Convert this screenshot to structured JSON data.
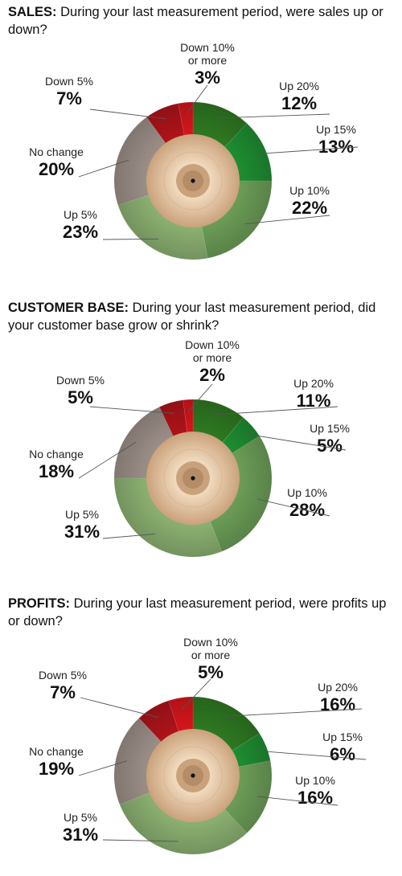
{
  "colors": {
    "down10": "#d8161c",
    "down5": "#b0141a",
    "nochange": "#9d9089",
    "up5": "#8db373",
    "up10": "#6d9f58",
    "up15": "#1e8f32",
    "up20": "#2f7a22",
    "cymbal_light": "#f2dcc0",
    "cymbal_dark": "#caa27c"
  },
  "chart_data": [
    {
      "type": "pie",
      "title_lead": "SALES:",
      "title_rest": "During your last measurement period, were sales up or down?",
      "categories": [
        "Up 20%",
        "Up 15%",
        "Up 10%",
        "Up 5%",
        "No change",
        "Down 5%",
        "Down 10% or more"
      ],
      "values": [
        12,
        13,
        22,
        23,
        20,
        7,
        3
      ],
      "labels": [
        {
          "name": [
            "Up 20%"
          ],
          "pct": "12%"
        },
        {
          "name": [
            "Up 15%"
          ],
          "pct": "13%"
        },
        {
          "name": [
            "Up 10%"
          ],
          "pct": "22%"
        },
        {
          "name": [
            "Up 5%"
          ],
          "pct": "23%"
        },
        {
          "name": [
            "No change"
          ],
          "pct": "20%"
        },
        {
          "name": [
            "Down 5%"
          ],
          "pct": "7%"
        },
        {
          "name": [
            "Down 10%",
            "or more"
          ],
          "pct": "3%"
        }
      ]
    },
    {
      "type": "pie",
      "title_lead": "CUSTOMER BASE:",
      "title_rest": "During your last measurement period, did your customer base grow or shrink?",
      "categories": [
        "Up 20%",
        "Up 15%",
        "Up 10%",
        "Up 5%",
        "No change",
        "Down 5%",
        "Down 10% or more"
      ],
      "values": [
        11,
        5,
        28,
        31,
        18,
        5,
        2
      ],
      "labels": [
        {
          "name": [
            "Up 20%"
          ],
          "pct": "11%"
        },
        {
          "name": [
            "Up 15%"
          ],
          "pct": "5%"
        },
        {
          "name": [
            "Up 10%"
          ],
          "pct": "28%"
        },
        {
          "name": [
            "Up 5%"
          ],
          "pct": "31%"
        },
        {
          "name": [
            "No change"
          ],
          "pct": "18%"
        },
        {
          "name": [
            "Down 5%"
          ],
          "pct": "5%"
        },
        {
          "name": [
            "Down 10%",
            "or more"
          ],
          "pct": "2%"
        }
      ]
    },
    {
      "type": "pie",
      "title_lead": "PROFITS:",
      "title_rest": "During your last measurement period, were profits up or down?",
      "categories": [
        "Up 20%",
        "Up 15%",
        "Up 10%",
        "Up 5%",
        "No change",
        "Down 5%",
        "Down 10% or more"
      ],
      "values": [
        16,
        6,
        16,
        31,
        19,
        7,
        5
      ],
      "labels": [
        {
          "name": [
            "Up 20%"
          ],
          "pct": "16%"
        },
        {
          "name": [
            "Up 15%"
          ],
          "pct": "6%"
        },
        {
          "name": [
            "Up 10%"
          ],
          "pct": "16%"
        },
        {
          "name": [
            "Up 5%"
          ],
          "pct": "31%"
        },
        {
          "name": [
            "No change"
          ],
          "pct": "19%"
        },
        {
          "name": [
            "Down 5%"
          ],
          "pct": "7%"
        },
        {
          "name": [
            "Down 10%",
            "or more"
          ],
          "pct": "5%"
        }
      ]
    }
  ]
}
